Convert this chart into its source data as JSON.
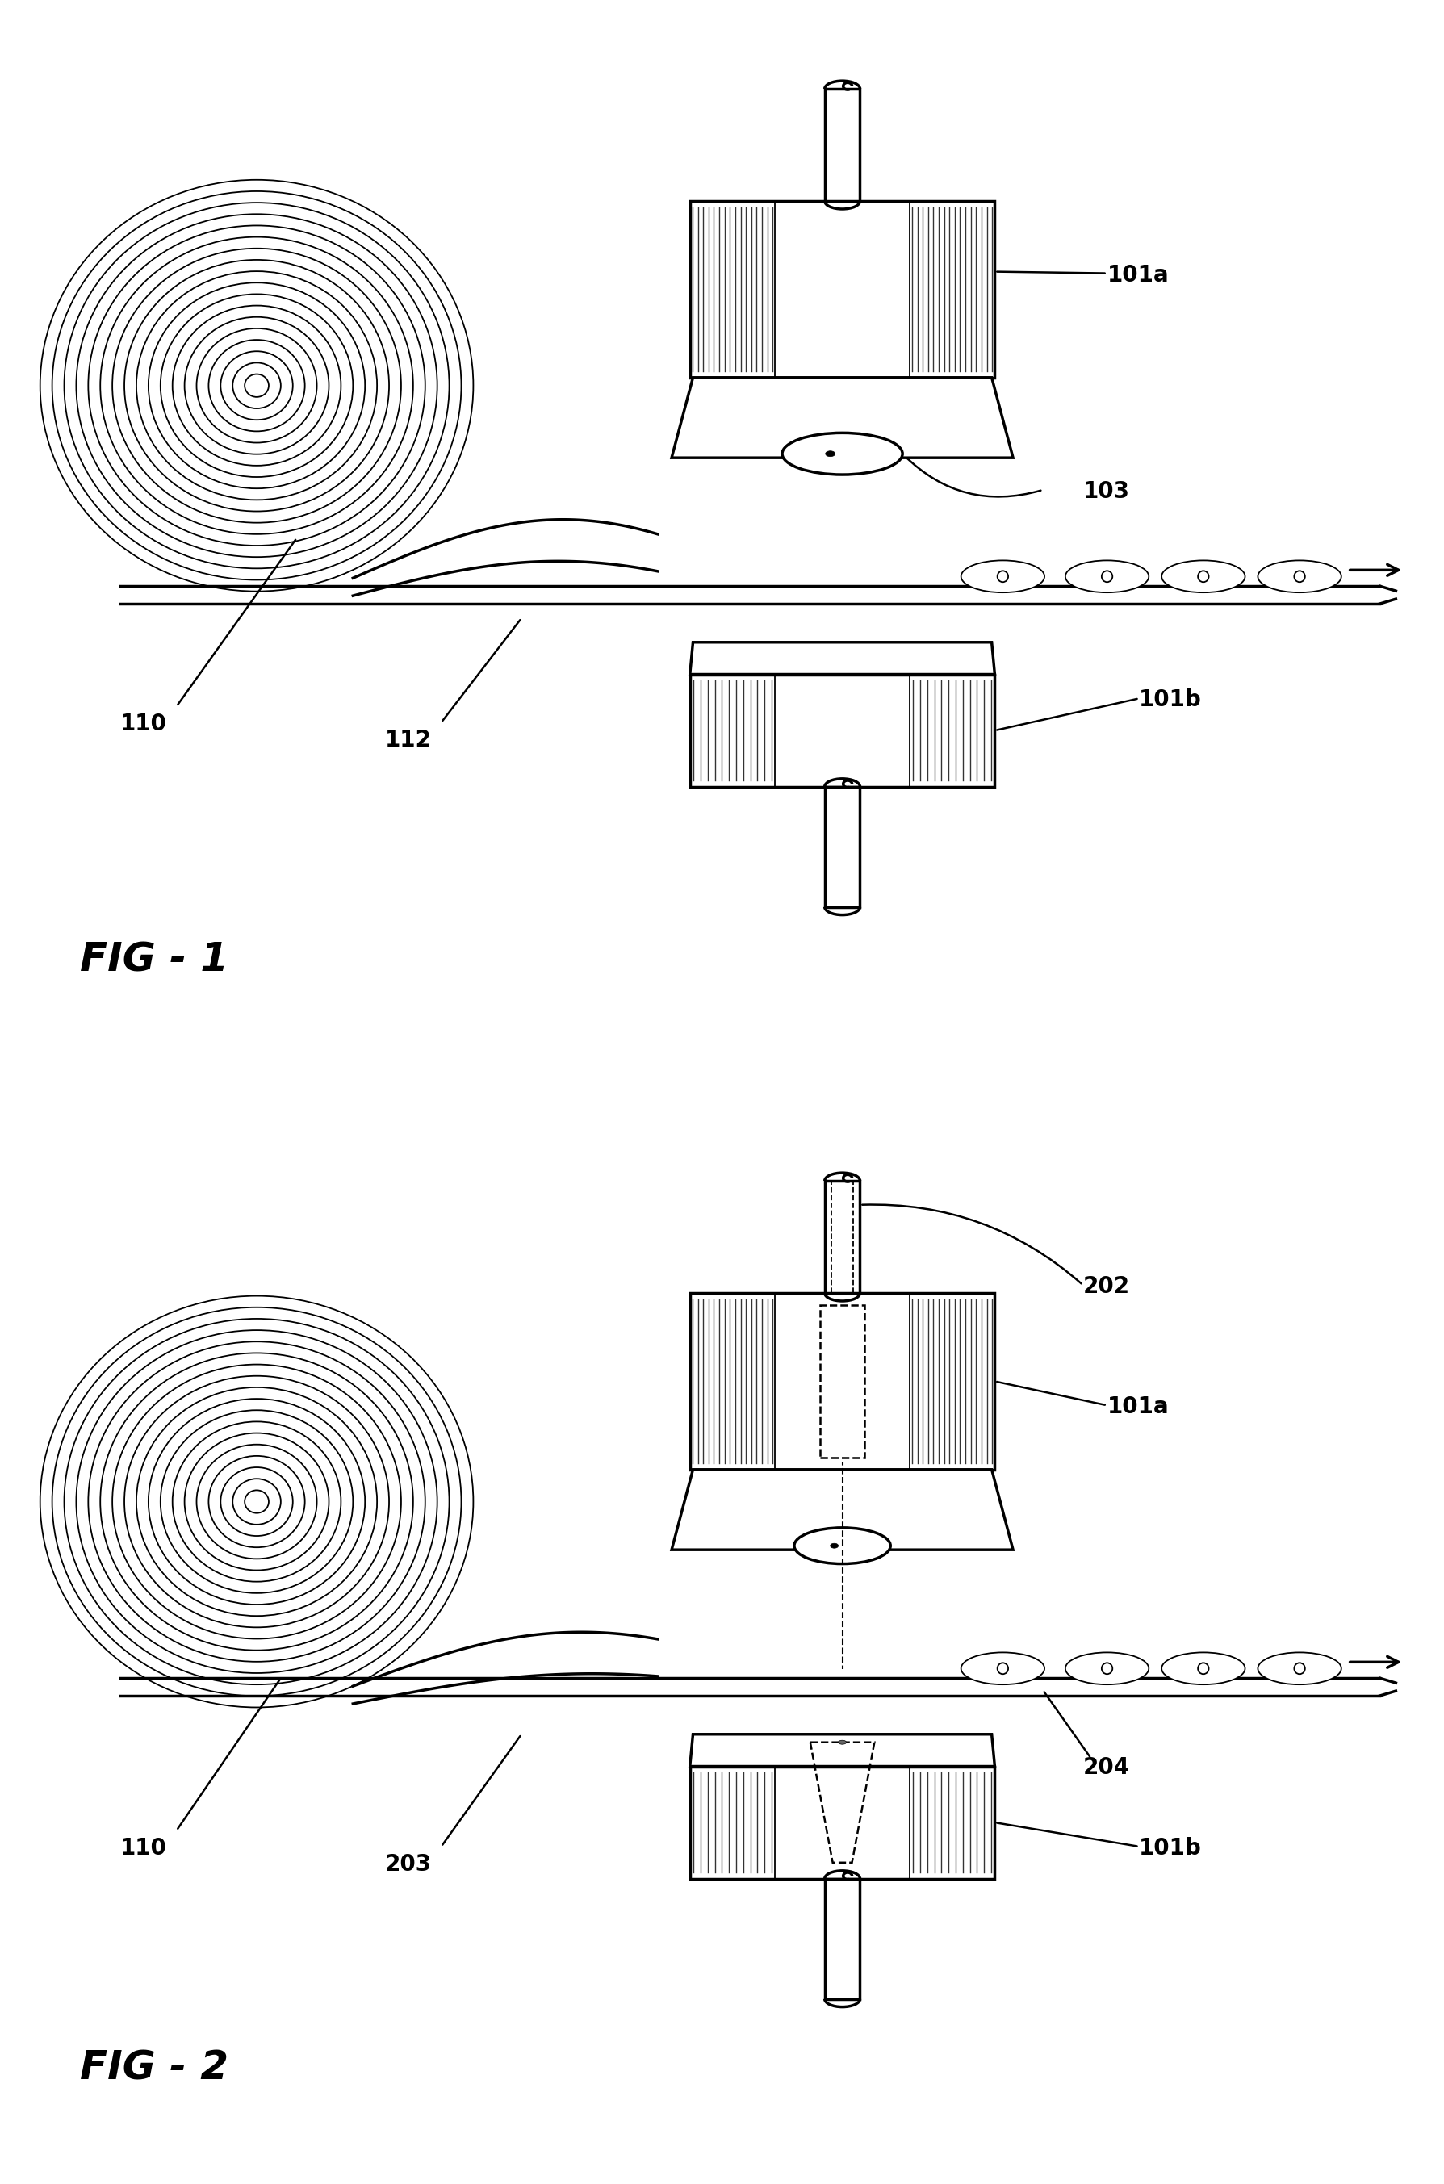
{
  "fig1_label": "FIG - 1",
  "fig2_label": "FIG - 2",
  "background_color": "#ffffff",
  "line_color": "#000000",
  "label_101a_fig1": "101a",
  "label_103_fig1": "103",
  "label_110_fig1": "110",
  "label_112_fig1": "112",
  "label_101b_fig1": "101b",
  "label_202_fig2": "202",
  "label_101a_fig2": "101a",
  "label_204_fig2": "204",
  "label_110_fig2": "110",
  "label_203_fig2": "203",
  "label_101b_fig2": "101b"
}
